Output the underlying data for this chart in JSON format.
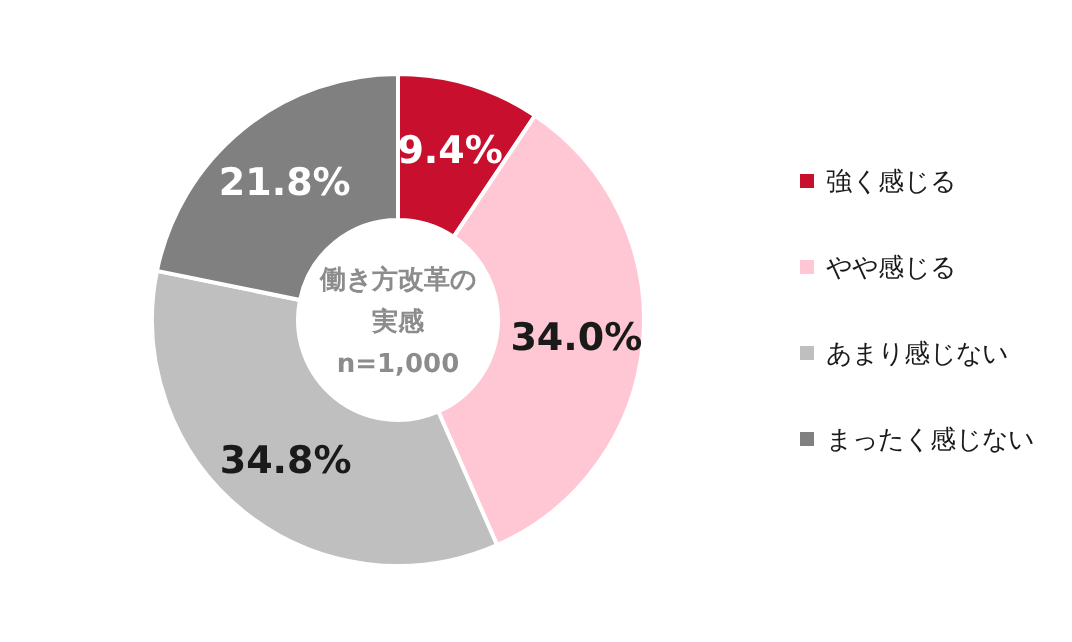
{
  "chart_data": {
    "type": "donut",
    "categories": [
      "強く感じる",
      "やや感じる",
      "あまり感じない",
      "まったく感じない"
    ],
    "values": [
      9.4,
      34.0,
      34.8,
      21.8
    ],
    "value_labels": [
      "9.4%",
      "34.0%",
      "34.8%",
      "21.8%"
    ],
    "colors": [
      "#c8102e",
      "#ffc7d3",
      "#bfbfbf",
      "#808080"
    ],
    "annotations": [
      "働き方改革の実感",
      "n=1,000"
    ],
    "legend": "right"
  }
}
